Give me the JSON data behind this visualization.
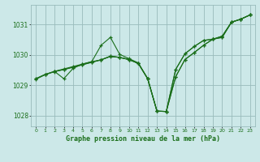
{
  "bg_color": "#cce8e8",
  "grid_color": "#99bbbb",
  "line_color": "#1a6e1a",
  "title": "Graphe pression niveau de la mer (hPa)",
  "xlim": [
    -0.5,
    23.5
  ],
  "ylim": [
    1027.65,
    1031.65
  ],
  "yticks": [
    1028,
    1029,
    1030,
    1031
  ],
  "xticks": [
    0,
    1,
    2,
    3,
    4,
    5,
    6,
    7,
    8,
    9,
    10,
    11,
    12,
    13,
    14,
    15,
    16,
    17,
    18,
    19,
    20,
    21,
    22,
    23
  ],
  "lines": [
    {
      "x": [
        0,
        1,
        2,
        3,
        4,
        5,
        6,
        7,
        8,
        9,
        10,
        11,
        12,
        13,
        14,
        15,
        16,
        17,
        18,
        19,
        20,
        21,
        22,
        23
      ],
      "y": [
        1029.2,
        1029.35,
        1029.45,
        1029.52,
        1029.6,
        1029.68,
        1029.76,
        1029.84,
        1029.95,
        1029.92,
        1029.85,
        1029.72,
        1029.22,
        1028.15,
        1028.14,
        1029.28,
        1029.85,
        1030.08,
        1030.32,
        1030.52,
        1030.62,
        1031.08,
        1031.18,
        1031.32
      ]
    },
    {
      "x": [
        0,
        1,
        2,
        3,
        4,
        5,
        6,
        7,
        8,
        9,
        10,
        11,
        12,
        13,
        14,
        15,
        16,
        17,
        18,
        19,
        20,
        21,
        22,
        23
      ],
      "y": [
        1029.22,
        1029.36,
        1029.46,
        1029.54,
        1029.62,
        1029.7,
        1029.78,
        1030.32,
        1030.58,
        1030.02,
        1029.88,
        1029.74,
        1029.22,
        1028.15,
        1028.14,
        1029.28,
        1029.85,
        1030.08,
        1030.32,
        1030.52,
        1030.62,
        1031.08,
        1031.18,
        1031.32
      ]
    },
    {
      "x": [
        0,
        1,
        2,
        3,
        4,
        5,
        6,
        7,
        8,
        9,
        10,
        11,
        12,
        13,
        14,
        15,
        16,
        17,
        18,
        19,
        20,
        21,
        22,
        23
      ],
      "y": [
        1029.22,
        1029.36,
        1029.46,
        1029.52,
        1029.6,
        1029.68,
        1029.76,
        1029.84,
        1029.96,
        1029.92,
        1029.85,
        1029.72,
        1029.22,
        1028.15,
        1028.14,
        1029.52,
        1030.04,
        1030.28,
        1030.48,
        1030.52,
        1030.58,
        1031.08,
        1031.18,
        1031.32
      ]
    },
    {
      "x": [
        2,
        3,
        4,
        5,
        6,
        7,
        8,
        9,
        10,
        11,
        12,
        13,
        14,
        15,
        16,
        17,
        18,
        19,
        20,
        21,
        22,
        23
      ],
      "y": [
        1029.46,
        1029.22,
        1029.56,
        1029.7,
        1029.78,
        1029.84,
        1029.96,
        1029.92,
        1029.85,
        1029.72,
        1029.22,
        1028.15,
        1028.14,
        1029.52,
        1030.04,
        1030.28,
        1030.48,
        1030.52,
        1030.58,
        1031.08,
        1031.18,
        1031.32
      ]
    }
  ]
}
